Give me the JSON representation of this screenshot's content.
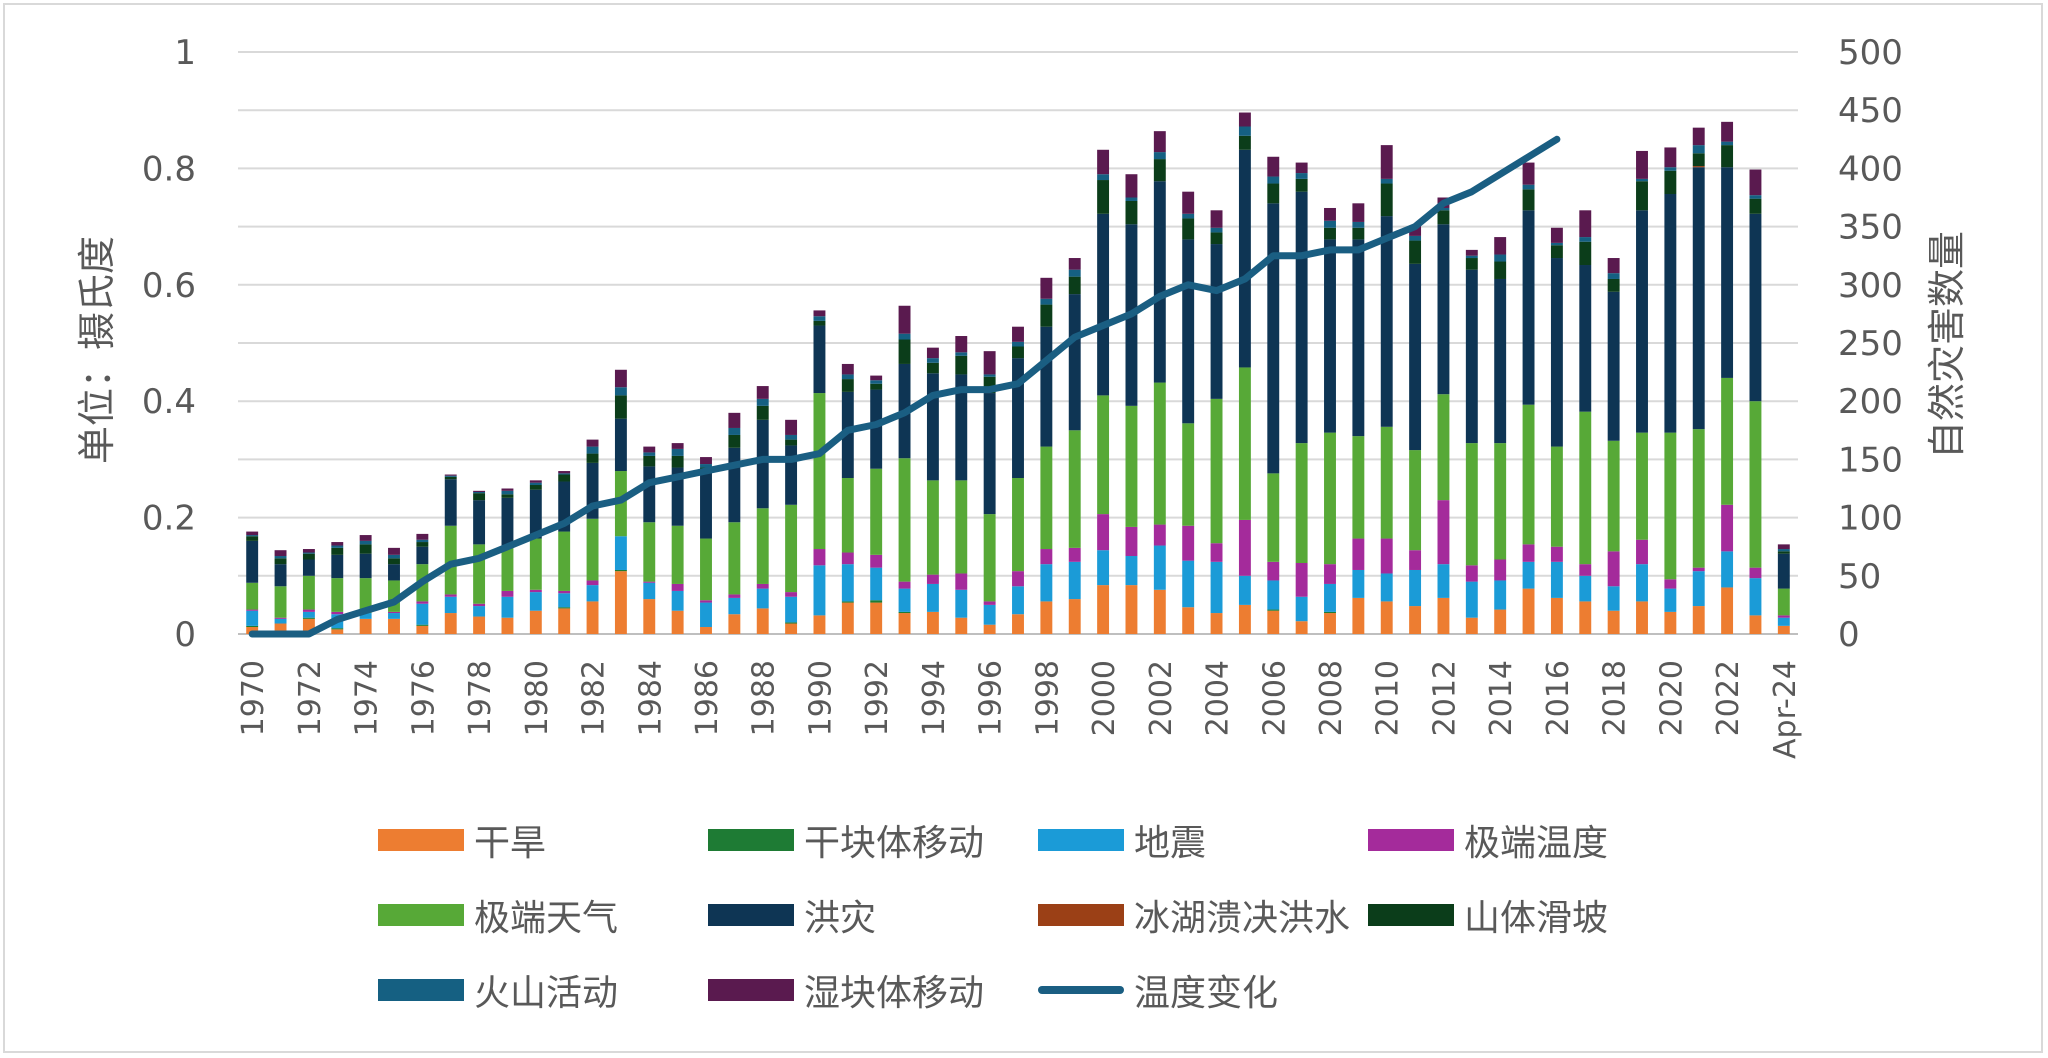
{
  "chart_data": {
    "type": "bar",
    "stacked": true,
    "categories": [
      "1970",
      "1971",
      "1972",
      "1973",
      "1974",
      "1975",
      "1976",
      "1977",
      "1978",
      "1979",
      "1980",
      "1981",
      "1982",
      "1983",
      "1984",
      "1985",
      "1986",
      "1987",
      "1988",
      "1989",
      "1990",
      "1991",
      "1992",
      "1993",
      "1994",
      "1995",
      "1996",
      "1997",
      "1998",
      "1999",
      "2000",
      "2001",
      "2002",
      "2003",
      "2004",
      "2005",
      "2006",
      "2007",
      "2008",
      "2009",
      "2010",
      "2011",
      "2012",
      "2013",
      "2014",
      "2015",
      "2016",
      "2017",
      "2018",
      "2019",
      "2020",
      "2021",
      "2022",
      "2023",
      "Apr-24"
    ],
    "x_tick_labels": [
      "1970",
      "1972",
      "1974",
      "1976",
      "1978",
      "1980",
      "1982",
      "1984",
      "1986",
      "1988",
      "1990",
      "1992",
      "1994",
      "1996",
      "1998",
      "2000",
      "2002",
      "2004",
      "2006",
      "2008",
      "2010",
      "2012",
      "2014",
      "2016",
      "2018",
      "2020",
      "2022",
      "Apr-24"
    ],
    "left_axis": {
      "label": "单位：摄氏度",
      "min": 0,
      "max": 1,
      "ticks": [
        "0",
        "0.2",
        "0.4",
        "0.6",
        "0.8",
        "1"
      ]
    },
    "right_axis": {
      "label": "自然灾害数量",
      "min": 0,
      "max": 500,
      "ticks": [
        "0",
        "50",
        "100",
        "150",
        "200",
        "250",
        "300",
        "350",
        "400",
        "450",
        "500"
      ]
    },
    "bar_axis": "right",
    "series": [
      {
        "name": "干旱",
        "color": "#ed7d31",
        "values": [
          6,
          9,
          13,
          4,
          13,
          13,
          7,
          18,
          15,
          14,
          20,
          22,
          28,
          54,
          30,
          20,
          6,
          17,
          22,
          9,
          16,
          27,
          27,
          18,
          19,
          14,
          8,
          17,
          28,
          30,
          42,
          42,
          38,
          23,
          18,
          25,
          20,
          11,
          18,
          31,
          28,
          24,
          31,
          14,
          21,
          39,
          31,
          28,
          20,
          28,
          19,
          24,
          40,
          16,
          7
        ]
      },
      {
        "name": "干块体移动",
        "color": "#1e7b34",
        "values": [
          1,
          0,
          1,
          1,
          0,
          0,
          1,
          0,
          0,
          0,
          0,
          1,
          0,
          1,
          0,
          0,
          0,
          0,
          0,
          1,
          0,
          1,
          2,
          1,
          0,
          0,
          0,
          0,
          0,
          0,
          0,
          0,
          0,
          0,
          0,
          0,
          1,
          0,
          1,
          0,
          0,
          0,
          0,
          0,
          0,
          0,
          0,
          0,
          0,
          0,
          0,
          0,
          0,
          0,
          0
        ]
      },
      {
        "name": "地震",
        "color": "#1b9bd7",
        "values": [
          13,
          4,
          5,
          12,
          5,
          5,
          18,
          14,
          9,
          18,
          16,
          12,
          14,
          29,
          14,
          17,
          21,
          14,
          17,
          22,
          43,
          32,
          28,
          20,
          24,
          24,
          17,
          24,
          32,
          32,
          30,
          25,
          38,
          40,
          44,
          25,
          25,
          21,
          24,
          24,
          24,
          31,
          29,
          31,
          25,
          23,
          31,
          22,
          21,
          32,
          20,
          30,
          31,
          32,
          7
        ]
      },
      {
        "name": "极端温度",
        "color": "#a42b9b",
        "values": [
          1,
          1,
          2,
          2,
          0,
          1,
          2,
          2,
          2,
          5,
          2,
          2,
          4,
          0,
          1,
          6,
          2,
          3,
          4,
          4,
          14,
          10,
          11,
          6,
          8,
          14,
          3,
          13,
          13,
          12,
          31,
          25,
          18,
          30,
          16,
          48,
          16,
          29,
          17,
          27,
          30,
          17,
          55,
          14,
          18,
          15,
          13,
          10,
          30,
          21,
          8,
          3,
          40,
          9,
          2
        ]
      },
      {
        "name": "极端天气",
        "color": "#57a937",
        "values": [
          23,
          27,
          29,
          29,
          30,
          27,
          32,
          59,
          51,
          38,
          44,
          51,
          53,
          56,
          51,
          50,
          53,
          62,
          65,
          75,
          134,
          64,
          74,
          106,
          81,
          80,
          75,
          80,
          88,
          101,
          102,
          104,
          122,
          88,
          124,
          131,
          76,
          103,
          113,
          88,
          96,
          86,
          91,
          105,
          100,
          120,
          86,
          131,
          95,
          92,
          126,
          119,
          109,
          143,
          23
        ]
      },
      {
        "name": "洪灾",
        "color": "#0e3554",
        "values": [
          36,
          19,
          14,
          20,
          21,
          14,
          15,
          40,
          38,
          42,
          42,
          43,
          48,
          45,
          48,
          50,
          56,
          64,
          76,
          51,
          58,
          74,
          68,
          81,
          92,
          91,
          104,
          103,
          103,
          117,
          156,
          156,
          173,
          158,
          133,
          187,
          232,
          216,
          166,
          169,
          181,
          160,
          146,
          149,
          141,
          167,
          162,
          126,
          128,
          191,
          205,
          225,
          181,
          161,
          30
        ]
      },
      {
        "name": "冰湖溃决洪水",
        "color": "#9b4016",
        "values": [
          0,
          0,
          0,
          0,
          0,
          0,
          0,
          0,
          0,
          0,
          0,
          0,
          0,
          0,
          0,
          0,
          0,
          0,
          0,
          0,
          0,
          0,
          0,
          0,
          0,
          0,
          0,
          0,
          0,
          0,
          0,
          0,
          0,
          0,
          0,
          0,
          0,
          0,
          0,
          0,
          0,
          0,
          0,
          0,
          0,
          0,
          0,
          0,
          0,
          0,
          0,
          1,
          0,
          0,
          0
        ]
      },
      {
        "name": "山体滑坡",
        "color": "#0b3d1a",
        "values": [
          4,
          5,
          5,
          6,
          8,
          5,
          4,
          2,
          6,
          3,
          4,
          6,
          8,
          20,
          9,
          10,
          5,
          11,
          12,
          5,
          4,
          11,
          5,
          21,
          9,
          16,
          14,
          10,
          19,
          15,
          29,
          20,
          19,
          18,
          10,
          12,
          17,
          11,
          10,
          10,
          28,
          20,
          12,
          10,
          15,
          18,
          11,
          20,
          11,
          25,
          20,
          11,
          19,
          13,
          2
        ]
      },
      {
        "name": "火山活动",
        "color": "#156082",
        "values": [
          1,
          2,
          1,
          2,
          3,
          3,
          2,
          1,
          1,
          3,
          2,
          1,
          6,
          7,
          3,
          6,
          3,
          6,
          6,
          4,
          4,
          4,
          3,
          5,
          4,
          3,
          2,
          4,
          5,
          6,
          5,
          3,
          6,
          4,
          4,
          8,
          6,
          5,
          6,
          5,
          4,
          4,
          2,
          2,
          6,
          4,
          2,
          4,
          5,
          2,
          3,
          7,
          3,
          3,
          2
        ]
      },
      {
        "name": "湿块体移动",
        "color": "#5a1a4f",
        "values": [
          3,
          5,
          3,
          3,
          5,
          6,
          5,
          1,
          1,
          2,
          2,
          2,
          6,
          15,
          5,
          5,
          6,
          13,
          11,
          13,
          5,
          9,
          4,
          24,
          9,
          14,
          20,
          13,
          18,
          10,
          21,
          20,
          18,
          19,
          15,
          12,
          17,
          9,
          11,
          16,
          29,
          9,
          9,
          5,
          15,
          19,
          13,
          23,
          13,
          24,
          17,
          15,
          17,
          22,
          4
        ]
      }
    ],
    "line": {
      "name": "温度变化",
      "axis": "left",
      "color": "#1a5e82",
      "values": [
        0,
        0,
        0,
        0.025,
        0.04,
        0.055,
        0.09,
        0.12,
        0.13,
        0.15,
        0.17,
        0.19,
        0.22,
        0.23,
        0.26,
        0.27,
        0.28,
        0.29,
        0.3,
        0.3,
        0.31,
        0.35,
        0.36,
        0.38,
        0.41,
        0.42,
        0.42,
        0.43,
        0.47,
        0.51,
        0.53,
        0.55,
        0.58,
        0.6,
        0.59,
        0.61,
        0.65,
        0.65,
        0.66,
        0.66,
        0.68,
        0.7,
        0.74,
        0.76,
        0.79,
        0.82,
        0.85,
        null,
        null,
        null,
        null,
        null,
        null,
        null,
        null
      ]
    },
    "legend": [
      "干旱",
      "干块体移动",
      "地震",
      "极端温度",
      "极端天气",
      "洪灾",
      "冰湖溃决洪水",
      "山体滑坡",
      "火山活动",
      "湿块体移动",
      "温度变化"
    ],
    "legend_position": "bottom",
    "grid": true
  }
}
